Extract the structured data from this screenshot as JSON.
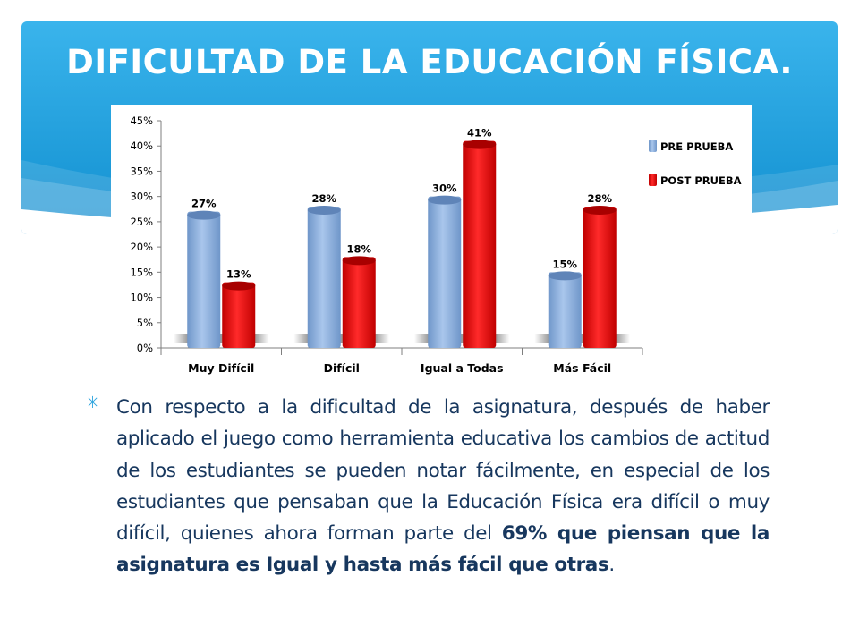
{
  "slide": {
    "title": "DIFICULTAD DE LA EDUCACIÓN FÍSICA.",
    "bullet_icon": "asterisk-icon",
    "paragraph": {
      "part1": "Con respecto a la dificultad de la asignatura, después de haber aplicado el juego como herramienta educativa los cambios de actitud de los estudiantes se pueden notar fácilmente, en especial de los estudiantes que pensaban que la Educación Física era difícil o  muy difícil, quienes ahora forman parte del ",
      "bold1": "69% que piensan que la asignatura es Igual y hasta más fácil que otras",
      "part2": "."
    },
    "colors": {
      "header": "#1d9ad8",
      "text": "#17375e",
      "pre": "#8db3e2",
      "post": "#e51414"
    }
  },
  "chart_data": {
    "type": "bar",
    "categories": [
      "Muy Difícil",
      "Difícil",
      "Igual a Todas",
      "Más Fácil"
    ],
    "series": [
      {
        "name": "PRE PRUEBA",
        "values": [
          27,
          28,
          30,
          15
        ],
        "labels": [
          "27%",
          "28%",
          "30%",
          "15%"
        ],
        "color": "#8db3e2"
      },
      {
        "name": "POST PRUEBA",
        "values": [
          13,
          18,
          41,
          28
        ],
        "labels": [
          "13%",
          "18%",
          "41%",
          "28%"
        ],
        "color": "#e51414"
      }
    ],
    "yticks": [
      "0%",
      "5%",
      "10%",
      "15%",
      "20%",
      "25%",
      "30%",
      "35%",
      "40%",
      "45%"
    ],
    "ylim": [
      0,
      45
    ],
    "legend": "right",
    "grid": false
  }
}
